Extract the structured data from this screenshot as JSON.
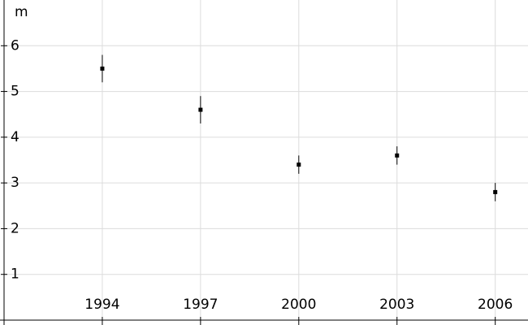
{
  "chart_data": {
    "type": "scatter",
    "ylabel": "m",
    "x": [
      1994,
      1997,
      2000,
      2003,
      2006
    ],
    "values": [
      5.5,
      4.6,
      3.4,
      3.6,
      2.8
    ],
    "errors": [
      0.3,
      0.3,
      0.2,
      0.2,
      0.2
    ],
    "color": "#000000",
    "xlim": [
      1991,
      2007
    ],
    "xticks": [
      1994,
      1997,
      2000,
      2003,
      2006
    ],
    "ylim": [
      0,
      7
    ],
    "yticks": [
      1,
      2,
      3,
      4,
      5,
      6
    ],
    "grid": true
  }
}
